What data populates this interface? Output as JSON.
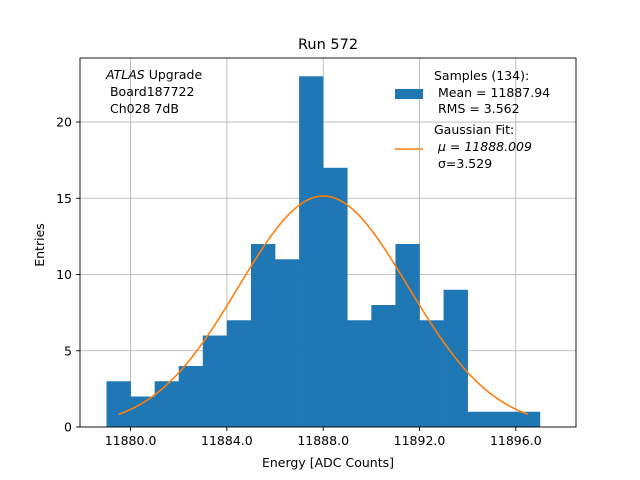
{
  "chart_data": {
    "type": "bar",
    "title": "Run 572",
    "xlabel": "Energy [ADC Counts]",
    "ylabel": "Entries",
    "xlim": [
      11877.9,
      11898.5
    ],
    "ylim": [
      0,
      24.2
    ],
    "xticks": [
      11880.0,
      11884.0,
      11888.0,
      11892.0,
      11896.0
    ],
    "xtick_labels": [
      "11880.0",
      "11884.0",
      "11888.0",
      "11892.0",
      "11896.0"
    ],
    "yticks": [
      0,
      5,
      10,
      15,
      20
    ],
    "ytick_labels": [
      "0",
      "5",
      "10",
      "15",
      "20"
    ],
    "grid": true,
    "histogram": {
      "name": "Samples (134):",
      "color": "#1f77b4",
      "bin_edges": [
        11879.0,
        11880.0,
        11881.0,
        11882.0,
        11883.0,
        11884.0,
        11885.0,
        11886.0,
        11887.0,
        11888.0,
        11889.0,
        11890.0,
        11891.0,
        11892.0,
        11893.0,
        11894.0,
        11895.0,
        11896.0,
        11897.0
      ],
      "counts": [
        3,
        2,
        3,
        4,
        6,
        7,
        12,
        11,
        23,
        17,
        7,
        8,
        12,
        7,
        9,
        1,
        1,
        1
      ]
    },
    "fit": {
      "name": "Gaussian Fit:",
      "color": "#ff7f0e",
      "mu": 11888.009,
      "sigma": 3.529,
      "amplitude": 15.15,
      "x_start": 11879.5,
      "x_end": 11896.5
    },
    "legend": {
      "position": "top-right",
      "samples_label": "Samples (134):",
      "mean_label": " Mean = 11887.94",
      "rms_label": " RMS = 3.562",
      "fit_label": "Gaussian Fit:",
      "mu_label": " μ = 11888.009",
      "sigma_label": " σ=3.529"
    },
    "annotation": {
      "position": "top-left",
      "line1_italic": "ATLAS",
      "line1_rest": " Upgrade",
      "line2": " Board187722",
      "line3": " Ch028 7dB"
    }
  }
}
